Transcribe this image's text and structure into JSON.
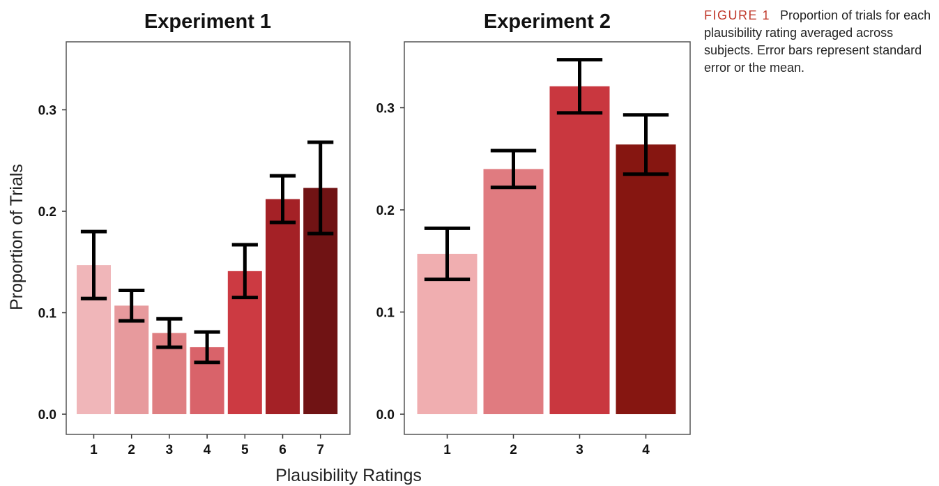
{
  "caption": {
    "label": "FIGURE 1",
    "text": "Proportion of trials for each plausibility rating averaged across subjects. Error bars represent standard error or the mean."
  },
  "shared_axes": {
    "ylabel": "Proportion of Trials",
    "xlabel": "Plausibility Ratings"
  },
  "chart_data": [
    {
      "type": "bar",
      "title": "Experiment 1",
      "categories": [
        "1",
        "2",
        "3",
        "4",
        "5",
        "6",
        "7"
      ],
      "values": [
        0.147,
        0.107,
        0.08,
        0.066,
        0.141,
        0.212,
        0.223
      ],
      "error": [
        0.033,
        0.015,
        0.014,
        0.015,
        0.026,
        0.023,
        0.045
      ],
      "colors": [
        "#f0b6b9",
        "#e79a9d",
        "#df7f82",
        "#d9636a",
        "#cc3a42",
        "#a42126",
        "#701314"
      ],
      "yticks": [
        "0.0",
        "0.1",
        "0.2",
        "0.3"
      ],
      "ylim": [
        0,
        0.35
      ],
      "xlabel": "Plausibility Ratings",
      "ylabel": "Proportion of Trials",
      "grid": false,
      "legend": "none"
    },
    {
      "type": "bar",
      "title": "Experiment 2",
      "categories": [
        "1",
        "2",
        "3",
        "4"
      ],
      "values": [
        0.157,
        0.24,
        0.321,
        0.264
      ],
      "error": [
        0.025,
        0.018,
        0.026,
        0.029
      ],
      "colors": [
        "#f0aeb0",
        "#e07b80",
        "#c9373f",
        "#861611"
      ],
      "yticks": [
        "0.0",
        "0.1",
        "0.2",
        "0.3"
      ],
      "ylim": [
        0,
        0.35
      ],
      "xlabel": "Plausibility Ratings",
      "ylabel": "",
      "grid": false,
      "legend": "none"
    }
  ]
}
